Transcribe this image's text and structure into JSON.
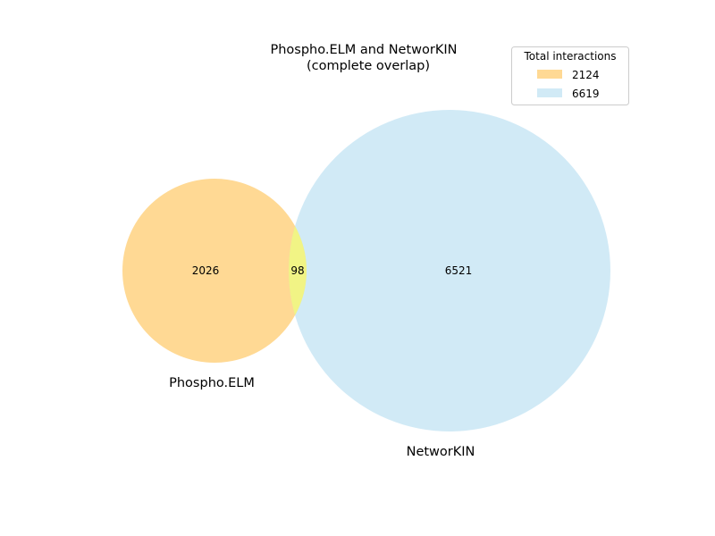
{
  "chart_data": {
    "type": "venn",
    "title_lines": [
      "Phospho.ELM and NetworKIN",
      "(complete overlap)"
    ],
    "sets": [
      {
        "name": "Phospho.ELM",
        "total": 2124,
        "only": 2026,
        "color": "#ffc966"
      },
      {
        "name": "NetworKIN",
        "total": 6619,
        "only": 6521,
        "color": "#b3dcf0"
      }
    ],
    "intersection": {
      "value": 98,
      "color": "#ffff66"
    },
    "legend": {
      "title": "Total interactions",
      "placement": "top-right",
      "entries": [
        {
          "label": "2124",
          "color": "#ffc966"
        },
        {
          "label": "6619",
          "color": "#b3dcf0"
        }
      ]
    }
  }
}
